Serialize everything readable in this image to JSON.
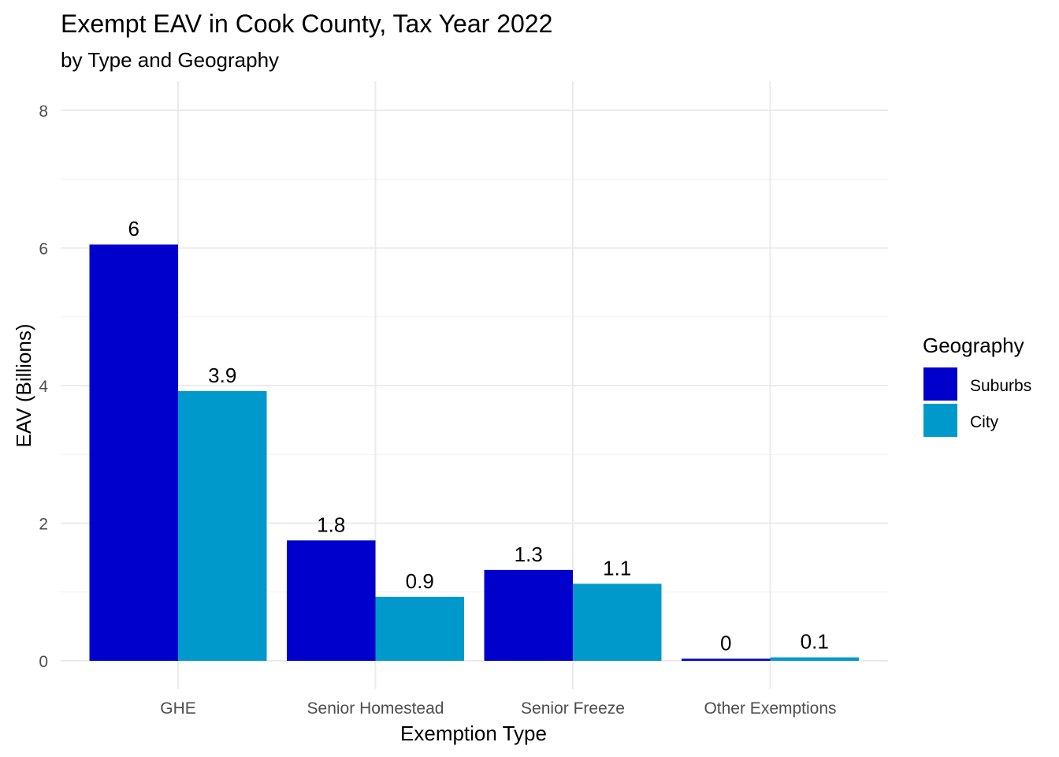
{
  "chart_data": {
    "type": "bar",
    "title": "Exempt EAV in Cook County, Tax Year 2022",
    "subtitle": "by Type and Geography",
    "xlabel": "Exemption Type",
    "ylabel": "EAV (Billions)",
    "categories": [
      "GHE",
      "Senior Homestead",
      "Senior Freeze",
      "Other Exemptions"
    ],
    "series": [
      {
        "name": "Suburbs",
        "color": "#0000CD",
        "values": [
          6.05,
          1.75,
          1.32,
          0.03
        ],
        "labels": [
          "6",
          "1.8",
          "1.3",
          "0"
        ]
      },
      {
        "name": "City",
        "color": "#0099CC",
        "values": [
          3.92,
          0.93,
          1.12,
          0.05
        ],
        "labels": [
          "3.9",
          "0.9",
          "1.1",
          "0.1"
        ]
      }
    ],
    "ylim": [
      0,
      8
    ],
    "yticks": [
      0,
      2,
      4,
      6,
      8
    ],
    "grid": true,
    "legend": {
      "title": "Geography",
      "position": "right"
    }
  }
}
